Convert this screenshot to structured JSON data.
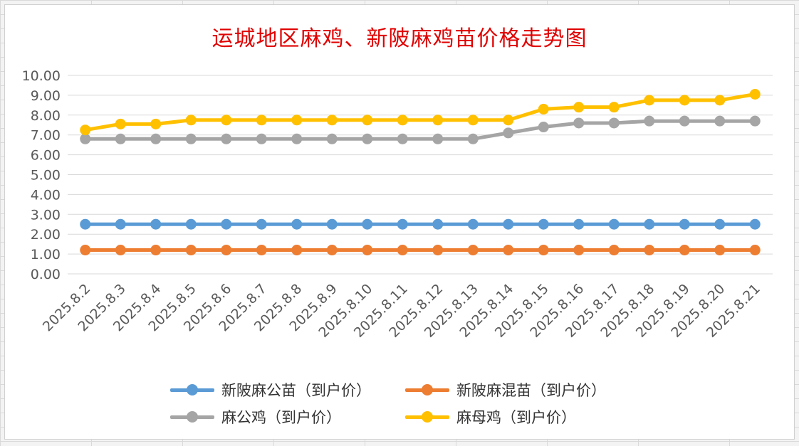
{
  "colors": {
    "series_1": "#5b9bd5",
    "series_2": "#ed7d31",
    "series_3": "#a5a5a5",
    "series_4": "#ffc000",
    "title": "#e00000",
    "grid": "#d9d9d9"
  },
  "chart_data": {
    "type": "line",
    "title": "运城地区麻鸡、新陂麻鸡苗价格走势图",
    "xlabel": "",
    "ylabel": "",
    "ylim": [
      0,
      10
    ],
    "y_ticks": [
      "0.00",
      "1.00",
      "2.00",
      "3.00",
      "4.00",
      "5.00",
      "6.00",
      "7.00",
      "8.00",
      "9.00",
      "10.00"
    ],
    "grid": true,
    "legend_position": "bottom",
    "categories": [
      "2025.8.2",
      "2025.8.3",
      "2025.8.4",
      "2025.8.5",
      "2025.8.6",
      "2025.8.7",
      "2025.8.8",
      "2025.8.9",
      "2025.8.10",
      "2025.8.11",
      "2025.8.12",
      "2025.8.13",
      "2025.8.14",
      "2025.8.15",
      "2025.8.16",
      "2025.8.17",
      "2025.8.18",
      "2025.8.19",
      "2025.8.20",
      "2025.8.21"
    ],
    "series": [
      {
        "name": "新陂麻公苗（到户价）",
        "color": "#5b9bd5",
        "values": [
          2.5,
          2.5,
          2.5,
          2.5,
          2.5,
          2.5,
          2.5,
          2.5,
          2.5,
          2.5,
          2.5,
          2.5,
          2.5,
          2.5,
          2.5,
          2.5,
          2.5,
          2.5,
          2.5,
          2.5
        ]
      },
      {
        "name": "新陂麻混苗（到户价）",
        "color": "#ed7d31",
        "values": [
          1.2,
          1.2,
          1.2,
          1.2,
          1.2,
          1.2,
          1.2,
          1.2,
          1.2,
          1.2,
          1.2,
          1.2,
          1.2,
          1.2,
          1.2,
          1.2,
          1.2,
          1.2,
          1.2,
          1.2
        ]
      },
      {
        "name": "麻公鸡（到户价）",
        "color": "#a5a5a5",
        "values": [
          6.8,
          6.8,
          6.8,
          6.8,
          6.8,
          6.8,
          6.8,
          6.8,
          6.8,
          6.8,
          6.8,
          6.8,
          7.1,
          7.4,
          7.6,
          7.6,
          7.7,
          7.7,
          7.7,
          7.7
        ]
      },
      {
        "name": "麻母鸡（到户价）",
        "color": "#ffc000",
        "values": [
          7.25,
          7.55,
          7.55,
          7.75,
          7.75,
          7.75,
          7.75,
          7.75,
          7.75,
          7.75,
          7.75,
          7.75,
          7.75,
          8.3,
          8.4,
          8.4,
          8.75,
          8.75,
          8.75,
          9.05
        ]
      }
    ]
  }
}
